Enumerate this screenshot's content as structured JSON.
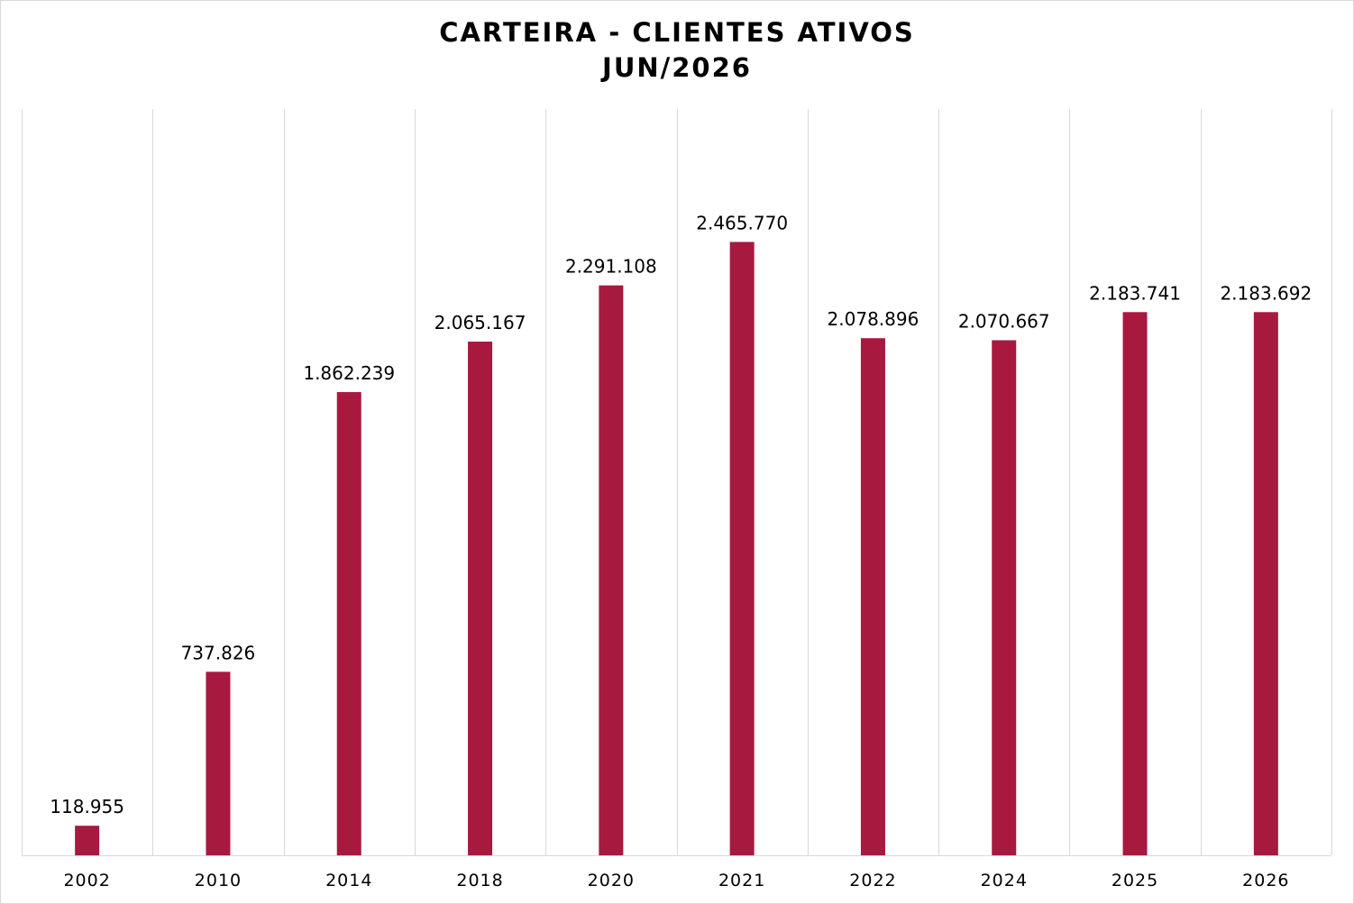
{
  "chart_data": {
    "type": "bar",
    "title_line1": "CARTEIRA - CLIENTES ATIVOS",
    "title_line2": "JUN/2026",
    "categories": [
      "2002",
      "2010",
      "2014",
      "2018",
      "2020",
      "2021",
      "2022",
      "2024",
      "2025",
      "2026"
    ],
    "values": [
      118955,
      737826,
      1862239,
      2065167,
      2291108,
      2465770,
      2078896,
      2070667,
      2183741,
      2183692
    ],
    "value_labels": [
      "118.955",
      "737.826",
      "1.862.239",
      "2.065.167",
      "2.291.108",
      "2.465.770",
      "2.078.896",
      "2.070.667",
      "2.183.741",
      "2.183.692"
    ],
    "ylim": [
      0,
      3000000
    ],
    "bar_color": "#a8193f",
    "grid": "vertical separators",
    "legend": "none"
  }
}
